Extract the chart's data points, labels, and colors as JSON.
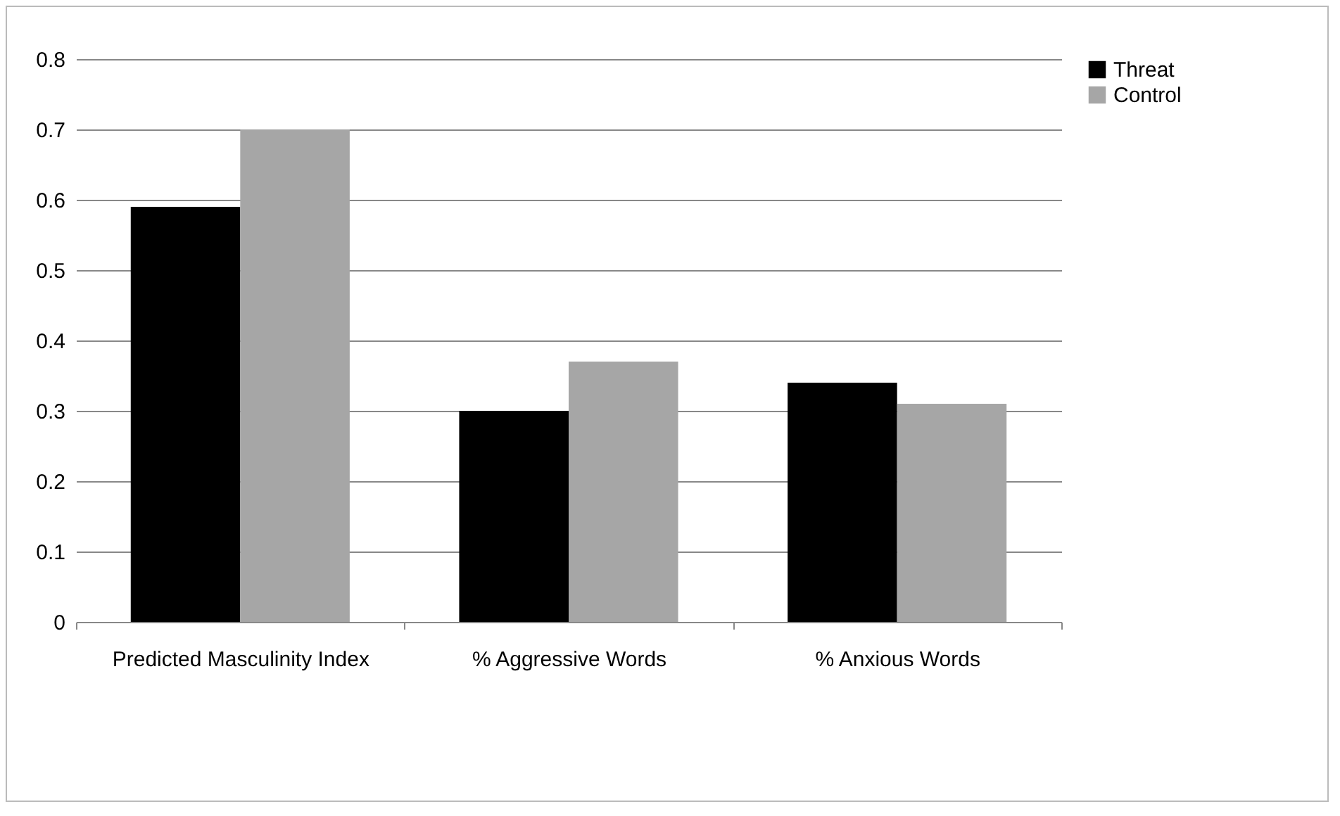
{
  "chart_data": {
    "type": "bar",
    "categories": [
      "Predicted Masculinity Index",
      "% Aggressive Words",
      "% Anxious Words"
    ],
    "series": [
      {
        "name": "Threat",
        "color": "#000000",
        "values": [
          0.59,
          0.3,
          0.34
        ]
      },
      {
        "name": "Control",
        "color": "#a6a6a6",
        "values": [
          0.7,
          0.37,
          0.31
        ]
      }
    ],
    "ylim": [
      0,
      0.8
    ],
    "yticks": [
      0,
      0.1,
      0.2,
      0.3,
      0.4,
      0.5,
      0.6,
      0.7,
      0.8
    ],
    "grid": "y",
    "legend": "right"
  }
}
